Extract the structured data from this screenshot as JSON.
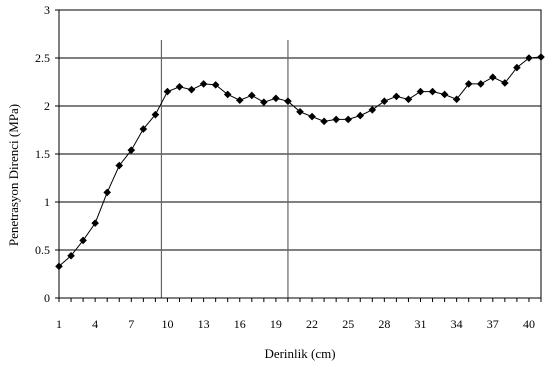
{
  "chart_data": {
    "type": "line",
    "title": "",
    "xlabel": "Derinlik (cm)",
    "ylabel": "Penetrasyon Direnci (MPa)",
    "ylim": [
      0,
      3
    ],
    "xlim": [
      1,
      41
    ],
    "y_ticks": [
      "0",
      "0.5",
      "1",
      "1.5",
      "2",
      "2.5",
      "3"
    ],
    "x_ticks": [
      {
        "value": 1,
        "label": "1"
      },
      {
        "value": 4,
        "label": "4"
      },
      {
        "value": 7,
        "label": "7"
      },
      {
        "value": 10,
        "label": "10"
      },
      {
        "value": 13,
        "label": "13"
      },
      {
        "value": 16,
        "label": "16"
      },
      {
        "value": 19,
        "label": "19"
      },
      {
        "value": 22,
        "label": "22"
      },
      {
        "value": 25,
        "label": "25"
      },
      {
        "value": 28,
        "label": "28"
      },
      {
        "value": 31,
        "label": "31"
      },
      {
        "value": 34,
        "label": "34"
      },
      {
        "value": 37,
        "label": "37"
      },
      {
        "value": 40,
        "label": "40"
      }
    ],
    "grid": "horizontal",
    "vertical_markers": [
      9.5,
      20
    ],
    "series": [
      {
        "marker": "diamond",
        "color": "#000000",
        "x": [
          1,
          2,
          3,
          4,
          5,
          6,
          7,
          8,
          9,
          10,
          11,
          12,
          13,
          14,
          15,
          16,
          17,
          18,
          19,
          20,
          21,
          22,
          23,
          24,
          25,
          26,
          27,
          28,
          29,
          30,
          31,
          32,
          33,
          34,
          35,
          36,
          37,
          38,
          39,
          40,
          41
        ],
        "values": [
          0.33,
          0.44,
          0.6,
          0.78,
          1.1,
          1.38,
          1.54,
          1.76,
          1.91,
          2.15,
          2.2,
          2.17,
          2.23,
          2.22,
          2.12,
          2.06,
          2.11,
          2.04,
          2.08,
          2.05,
          1.94,
          1.89,
          1.84,
          1.86,
          1.86,
          1.9,
          1.96,
          2.05,
          2.1,
          2.07,
          2.15,
          2.15,
          2.12,
          2.07,
          2.23,
          2.23,
          2.3,
          2.24,
          2.4,
          2.5,
          2.51
        ]
      }
    ]
  }
}
